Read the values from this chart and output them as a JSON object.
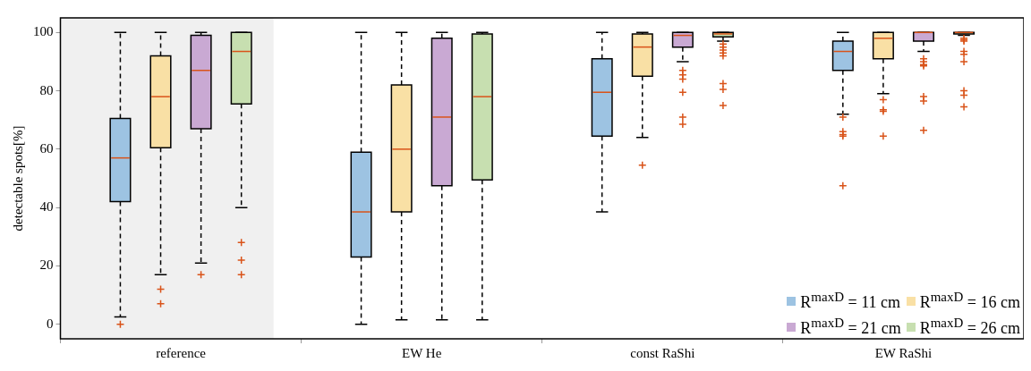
{
  "chart_data": {
    "type": "box",
    "ylabel": "detectable spots[%]",
    "categories": [
      "reference",
      "EW He",
      "const RaShi",
      "EW RaShi"
    ],
    "ylim": [
      -5,
      105
    ],
    "yticks": [
      0,
      20,
      40,
      60,
      80,
      100
    ],
    "legend": "bottom right",
    "bands": [
      {
        "axis": "x",
        "from": "reference",
        "to": "reference",
        "color": "#f0f0f0"
      }
    ],
    "series": [
      {
        "name": "R$^{maxD}$ = 11 cm",
        "color": "#9dc3e2",
        "boxes": [
          {
            "low": 2.5,
            "q1": 42,
            "median": 57,
            "q3": 70.5,
            "high": 100,
            "outliers": [
              0
            ]
          },
          {
            "low": 0,
            "q1": 23,
            "median": 38.5,
            "q3": 59,
            "high": 100
          },
          {
            "low": 38.5,
            "q1": 64.5,
            "median": 79.5,
            "q3": 91,
            "high": 100
          },
          {
            "low": 72,
            "q1": 87,
            "median": 93.5,
            "q3": 97,
            "high": 100,
            "outliers": [
              71,
              66,
              65,
              64.5,
              47.5
            ]
          }
        ]
      },
      {
        "name": "R$^{maxD}$ = 16 cm",
        "color": "#f9e0a5",
        "boxes": [
          {
            "low": 17,
            "q1": 60.5,
            "median": 78,
            "q3": 92,
            "high": 100,
            "outliers": [
              12,
              7
            ]
          },
          {
            "low": 1.5,
            "q1": 38.5,
            "median": 60,
            "q3": 82,
            "high": 100
          },
          {
            "low": 64,
            "q1": 85,
            "median": 95,
            "q3": 99.5,
            "high": 100,
            "outliers": [
              54.5
            ]
          },
          {
            "low": 79,
            "q1": 91,
            "median": 98,
            "q3": 100,
            "high": 100,
            "outliers": [
              77,
              73.5,
              73,
              64.5
            ]
          }
        ]
      },
      {
        "name": "R$^{maxD}$ = 21 cm",
        "color": "#c9a9d3",
        "boxes": [
          {
            "low": 21,
            "q1": 67,
            "median": 87,
            "q3": 99,
            "high": 100,
            "outliers": [
              17
            ]
          },
          {
            "low": 1.5,
            "q1": 47.5,
            "median": 71,
            "q3": 98,
            "high": 100
          },
          {
            "low": 90,
            "q1": 95,
            "median": 99,
            "q3": 100,
            "high": 100,
            "outliers": [
              87,
              85.5,
              84,
              79.5,
              71,
              68.5
            ]
          },
          {
            "low": 93.5,
            "q1": 97,
            "median": 100,
            "q3": 100,
            "high": 100,
            "outliers": [
              91,
              90,
              89,
              88.5,
              78,
              76.5,
              66.5
            ]
          }
        ]
      },
      {
        "name": "R$^{maxD}$ = 26 cm",
        "color": "#c7dfb0",
        "boxes": [
          {
            "low": 40,
            "q1": 75.5,
            "median": 93.5,
            "q3": 100,
            "high": 100,
            "outliers": [
              28,
              22,
              17
            ]
          },
          {
            "low": 1.5,
            "q1": 49.5,
            "median": 78,
            "q3": 99.5,
            "high": 100
          },
          {
            "low": 97,
            "q1": 98.5,
            "median": 99.5,
            "q3": 100,
            "high": 100,
            "outliers": [
              96,
              95,
              94,
              93,
              92,
              82.5,
              80.5,
              75
            ]
          },
          {
            "low": 99,
            "q1": 99.5,
            "median": 100,
            "q3": 100,
            "high": 100,
            "outliers": [
              98,
              97.5,
              97,
              93.5,
              92.5,
              90,
              80,
              78.5,
              74.5
            ]
          }
        ]
      }
    ]
  }
}
